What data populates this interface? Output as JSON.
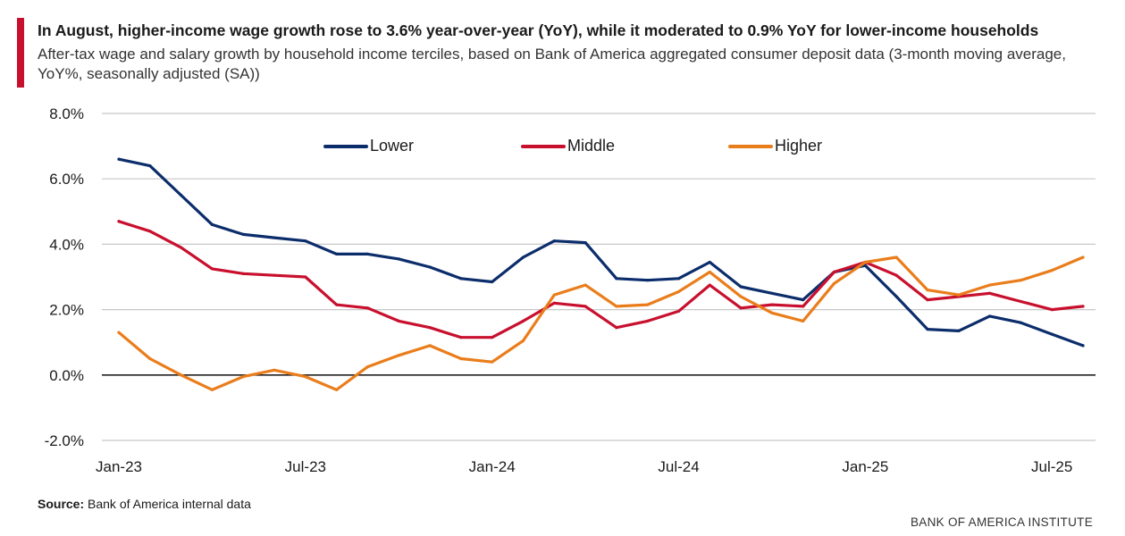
{
  "header": {
    "title": "In August, higher-income wage growth rose to 3.6% year-over-year (YoY), while it moderated to 0.9% YoY for lower-income households",
    "subtitle": "After-tax wage and salary growth by household income terciles, based on Bank of America aggregated consumer deposit data (3-month moving average, YoY%, seasonally adjusted (SA))"
  },
  "footer": {
    "source_label": "Source:",
    "source_text": "Bank of America internal data",
    "brand": "BANK OF AMERICA INSTITUTE"
  },
  "colors": {
    "accent": "#c8102e",
    "lower": "#0c2d6b",
    "middle": "#c8102e",
    "higher": "#ea7d1b",
    "grid": "#c8c8c8",
    "zero_line": "#222222"
  },
  "chart_data": {
    "type": "line",
    "title": "In August, higher-income wage growth rose to 3.6% year-over-year (YoY), while it moderated to 0.9% YoY for lower-income households",
    "xlabel": "",
    "ylabel": "",
    "ylim": [
      -2,
      8
    ],
    "yticks": [
      "8.0%",
      "6.0%",
      "4.0%",
      "2.0%",
      "0.0%",
      "-2.0%"
    ],
    "ytick_values": [
      8,
      6,
      4,
      2,
      0,
      -2
    ],
    "xticks": [
      "Jan-23",
      "Jul-23",
      "Jan-24",
      "Jul-24",
      "Jan-25",
      "Jul-25"
    ],
    "xtick_indices": [
      0,
      6,
      12,
      18,
      24,
      30
    ],
    "grid": true,
    "legend_position": "top-center",
    "x": [
      "2023-01",
      "2023-02",
      "2023-03",
      "2023-04",
      "2023-05",
      "2023-06",
      "2023-07",
      "2023-08",
      "2023-09",
      "2023-10",
      "2023-11",
      "2023-12",
      "2024-01",
      "2024-02",
      "2024-03",
      "2024-04",
      "2024-05",
      "2024-06",
      "2024-07",
      "2024-08",
      "2024-09",
      "2024-10",
      "2024-11",
      "2024-12",
      "2025-01",
      "2025-02",
      "2025-03",
      "2025-04",
      "2025-05",
      "2025-06",
      "2025-07",
      "2025-08"
    ],
    "series": [
      {
        "name": "Lower",
        "color": "#0c2d6b",
        "values": [
          6.6,
          6.4,
          5.5,
          4.6,
          4.3,
          4.2,
          4.1,
          3.7,
          3.7,
          3.55,
          3.3,
          2.95,
          2.85,
          3.6,
          4.1,
          4.05,
          2.95,
          2.9,
          2.95,
          3.45,
          2.7,
          2.5,
          2.3,
          3.15,
          3.35,
          2.4,
          1.4,
          1.35,
          1.8,
          1.6,
          1.25,
          0.9
        ]
      },
      {
        "name": "Middle",
        "color": "#c8102e",
        "values": [
          4.7,
          4.4,
          3.9,
          3.25,
          3.1,
          3.05,
          3.0,
          2.15,
          2.05,
          1.65,
          1.45,
          1.15,
          1.15,
          1.65,
          2.2,
          2.1,
          1.45,
          1.65,
          1.95,
          2.75,
          2.05,
          2.15,
          2.1,
          3.15,
          3.45,
          3.05,
          2.3,
          2.4,
          2.5,
          2.25,
          2.0,
          2.1
        ]
      },
      {
        "name": "Higher",
        "color": "#ea7d1b",
        "values": [
          1.3,
          0.5,
          0.0,
          -0.45,
          -0.05,
          0.15,
          -0.05,
          -0.45,
          0.25,
          0.6,
          0.9,
          0.5,
          0.4,
          1.05,
          2.45,
          2.75,
          2.1,
          2.15,
          2.55,
          3.15,
          2.4,
          1.9,
          1.65,
          2.8,
          3.45,
          3.6,
          2.6,
          2.45,
          2.75,
          2.9,
          3.2,
          3.6
        ]
      }
    ]
  }
}
